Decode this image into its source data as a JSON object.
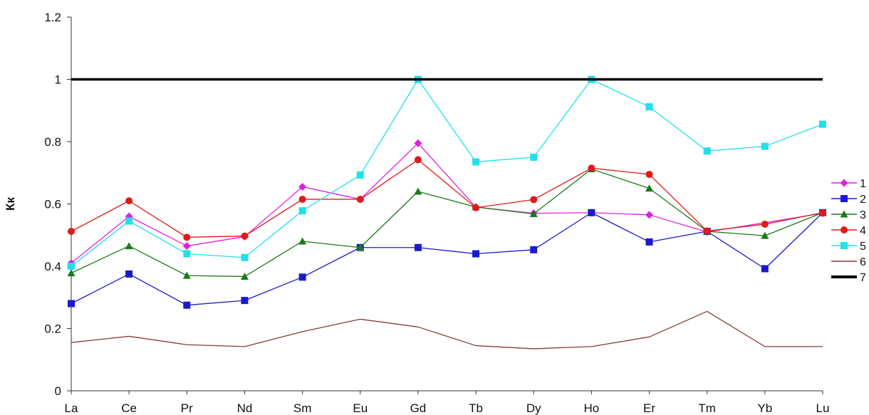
{
  "chart_data": {
    "type": "line",
    "title": "",
    "xlabel": "",
    "ylabel": "Кк",
    "ylim": [
      0,
      1.2
    ],
    "yticks": [
      "0",
      "0.2",
      "0.4",
      "0.6",
      "0.8",
      "1",
      "1.2"
    ],
    "grid": false,
    "legend_position": "right",
    "categories": [
      "La",
      "Ce",
      "Pr",
      "Nd",
      "Sm",
      "Eu",
      "Gd",
      "Tb",
      "Dy",
      "Ho",
      "Er",
      "Tm",
      "Yb",
      "Lu"
    ],
    "series": [
      {
        "name": "1",
        "color": "#e020e0",
        "marker": "diamond",
        "values": [
          0.41,
          0.56,
          0.465,
          0.495,
          0.655,
          0.615,
          0.795,
          0.59,
          0.57,
          0.572,
          0.565,
          0.51,
          null,
          0.57
        ]
      },
      {
        "name": "2",
        "color": "#1a1acc",
        "marker": "square",
        "values": [
          0.28,
          0.375,
          0.275,
          0.29,
          0.365,
          0.46,
          0.46,
          0.44,
          0.453,
          0.572,
          0.478,
          0.512,
          0.392,
          0.572
        ]
      },
      {
        "name": "3",
        "color": "#1a7a1a",
        "marker": "triangle",
        "values": [
          0.378,
          0.465,
          0.37,
          0.367,
          0.48,
          0.46,
          0.64,
          0.59,
          0.568,
          0.712,
          0.65,
          0.512,
          0.498,
          0.572
        ]
      },
      {
        "name": "4",
        "color": "#e01a1a",
        "marker": "circle",
        "values": [
          0.512,
          0.61,
          0.493,
          0.497,
          0.615,
          0.615,
          0.742,
          0.588,
          0.614,
          0.715,
          0.695,
          0.513,
          0.535,
          0.572
        ]
      },
      {
        "name": "5",
        "color": "#20e0e8",
        "marker": "square",
        "values": [
          0.4,
          0.545,
          0.44,
          0.428,
          0.578,
          0.693,
          1.0,
          0.735,
          0.75,
          1.0,
          0.912,
          0.77,
          0.785,
          0.856
        ]
      },
      {
        "name": "6",
        "color": "#8b3a3a",
        "marker": "none",
        "values": [
          0.155,
          0.175,
          0.148,
          0.142,
          0.19,
          0.23,
          0.205,
          0.145,
          0.135,
          0.142,
          0.173,
          0.255,
          0.142,
          0.142
        ]
      },
      {
        "name": "7",
        "color": "#000000",
        "marker": "none",
        "line_width": "thick",
        "values": [
          1,
          1,
          1,
          1,
          1,
          1,
          1,
          1,
          1,
          1,
          1,
          1,
          1,
          1
        ]
      }
    ]
  }
}
